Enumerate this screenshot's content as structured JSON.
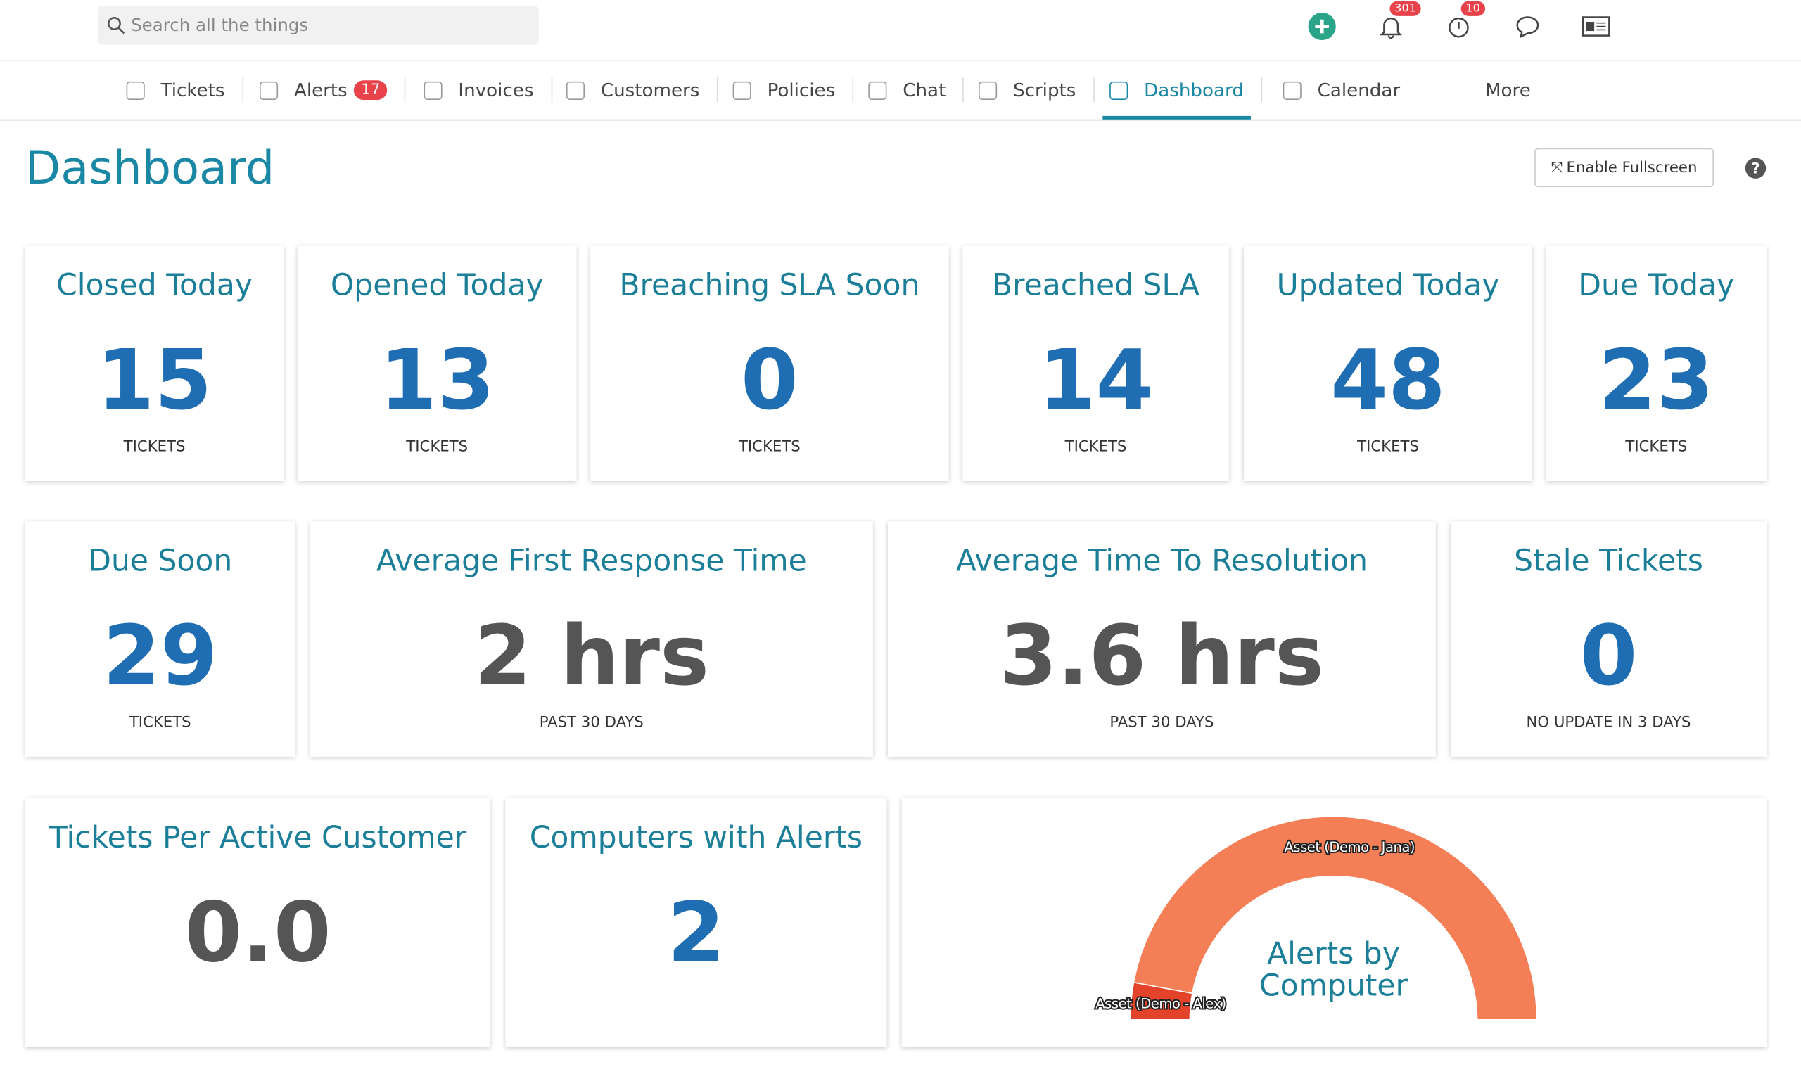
{
  "search_placeholder": "Search all the things",
  "header_badges": {
    "notifications": "301",
    "timers": "10"
  },
  "nav": [
    {
      "label": "Tickets"
    },
    {
      "label": "Alerts",
      "badge": "17"
    },
    {
      "label": "Invoices"
    },
    {
      "label": "Customers"
    },
    {
      "label": "Policies"
    },
    {
      "label": "Chat"
    },
    {
      "label": "Scripts"
    },
    {
      "label": "Dashboard",
      "active": true
    },
    {
      "label": "Calendar"
    },
    {
      "label": "More"
    }
  ],
  "page_title": "Dashboard",
  "fullscreen_button": "Enable Fullscreen",
  "cards": [
    {
      "title": "Closed Today",
      "value": 15,
      "unit": "TICKETS",
      "value_color": "#1f6db3"
    },
    {
      "title": "Opened Today",
      "value": 13,
      "unit": "TICKETS",
      "value_color": "#1f6db3"
    },
    {
      "title": "Breaching SLA Soon",
      "value": 0,
      "unit": "TICKETS",
      "value_color": "#1f6db3"
    },
    {
      "title": "Breached SLA",
      "value": 14,
      "unit": "TICKETS",
      "value_color": "#1f6db3"
    },
    {
      "title": "Updated Today",
      "value": 48,
      "unit": "TICKETS",
      "value_color": "#1f6db3"
    },
    {
      "title": "Due Today",
      "value": 23,
      "unit": "TICKETS",
      "value_color": "#1f6db3"
    },
    {
      "title": "Due Soon",
      "value": 29,
      "unit": "TICKETS",
      "value_color": "#1f6db3"
    },
    {
      "title": "Average First Response Time",
      "value": "2 hrs",
      "unit": "PAST 30 DAYS",
      "value_color": "#555555"
    },
    {
      "title": "Average Time To Resolution",
      "value": "3.6 hrs",
      "unit": "PAST 30 DAYS",
      "value_color": "#555555"
    },
    {
      "title": "Stale Tickets",
      "value": 0,
      "unit": "NO UPDATE IN 3 DAYS",
      "value_color": "#1f6db3"
    },
    {
      "title": "Tickets Per Active Customer",
      "value": "0.0",
      "value_color": "#555555"
    },
    {
      "title": "Computers with Alerts",
      "value": 2,
      "value_color": "#1f6db3"
    }
  ],
  "chart_data": {
    "type": "pie",
    "title": "Alerts by Computer",
    "categories": [
      "Asset (Demo - Alex)",
      "Asset (Demo - Jana)"
    ],
    "values": [
      1,
      16
    ],
    "colors": [
      "#e2432a",
      "#f47e56"
    ]
  }
}
